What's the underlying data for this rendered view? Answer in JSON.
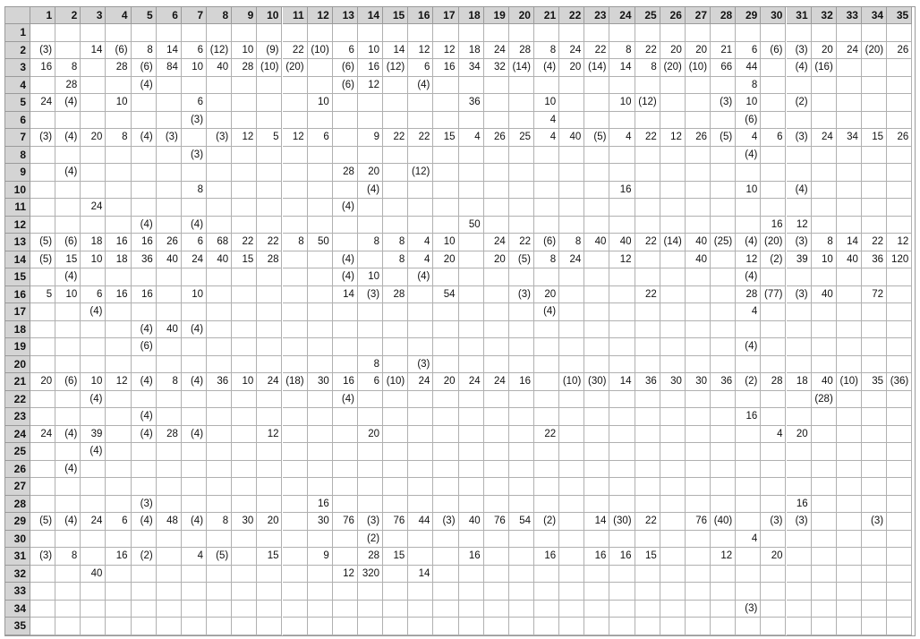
{
  "columns": [
    "1",
    "2",
    "3",
    "4",
    "5",
    "6",
    "7",
    "8",
    "9",
    "10",
    "11",
    "12",
    "13",
    "14",
    "15",
    "16",
    "17",
    "18",
    "19",
    "20",
    "21",
    "22",
    "23",
    "24",
    "25",
    "26",
    "27",
    "28",
    "29",
    "30",
    "31",
    "32",
    "33",
    "34",
    "35"
  ],
  "rows": [
    {
      "label": "1",
      "cells": [
        "",
        "",
        "",
        "",
        "",
        "",
        "",
        "",
        "",
        "",
        "",
        "",
        "",
        "",
        "",
        "",
        "",
        "",
        "",
        "",
        "",
        "",
        "",
        "",
        "",
        "",
        "",
        "",
        "",
        "",
        "",
        "",
        "",
        "",
        ""
      ]
    },
    {
      "label": "2",
      "cells": [
        "(3)",
        "",
        "14",
        "(6)",
        "8",
        "14",
        "6",
        "(12)",
        "10",
        "(9)",
        "22",
        "(10)",
        "6",
        "10",
        "14",
        "12",
        "12",
        "18",
        "24",
        "28",
        "8",
        "24",
        "22",
        "8",
        "22",
        "20",
        "20",
        "21",
        "6",
        "(6)",
        "(3)",
        "20",
        "24",
        "(20)",
        "26"
      ]
    },
    {
      "label": "3",
      "cells": [
        "16",
        "8",
        "",
        "28",
        "(6)",
        "84",
        "10",
        "40",
        "28",
        "(10)",
        "(20)",
        "",
        "(6)",
        "16",
        "(12)",
        "6",
        "16",
        "34",
        "32",
        "(14)",
        "(4)",
        "20",
        "(14)",
        "14",
        "8",
        "(20)",
        "(10)",
        "66",
        "44",
        "",
        "(4)",
        "(16)",
        "",
        "",
        ""
      ]
    },
    {
      "label": "4",
      "cells": [
        "",
        "28",
        "",
        "",
        "(4)",
        "",
        "",
        "",
        "",
        "",
        "",
        "",
        "(6)",
        "12",
        "",
        "(4)",
        "",
        "",
        "",
        "",
        "",
        "",
        "",
        "",
        "",
        "",
        "",
        "",
        "8",
        "",
        "",
        "",
        "",
        "",
        ""
      ]
    },
    {
      "label": "5",
      "cells": [
        "24",
        "(4)",
        "",
        "10",
        "",
        "",
        "6",
        "",
        "",
        "",
        "",
        "10",
        "",
        "",
        "",
        "",
        "",
        "36",
        "",
        "",
        "10",
        "",
        "",
        "10",
        "(12)",
        "",
        "",
        "(3)",
        "10",
        "",
        "(2)",
        "",
        "",
        "",
        ""
      ]
    },
    {
      "label": "6",
      "cells": [
        "",
        "",
        "",
        "",
        "",
        "",
        "(3)",
        "",
        "",
        "",
        "",
        "",
        "",
        "",
        "",
        "",
        "",
        "",
        "",
        "",
        "4",
        "",
        "",
        "",
        "",
        "",
        "",
        "",
        "(6)",
        "",
        "",
        "",
        "",
        "",
        ""
      ]
    },
    {
      "label": "7",
      "cells": [
        "(3)",
        "(4)",
        "20",
        "8",
        "(4)",
        "(3)",
        "",
        "(3)",
        "12",
        "5",
        "12",
        "6",
        "",
        "9",
        "22",
        "22",
        "15",
        "4",
        "26",
        "25",
        "4",
        "40",
        "(5)",
        "4",
        "22",
        "12",
        "26",
        "(5)",
        "4",
        "6",
        "(3)",
        "24",
        "34",
        "15",
        "26"
      ]
    },
    {
      "label": "8",
      "cells": [
        "",
        "",
        "",
        "",
        "",
        "",
        "(3)",
        "",
        "",
        "",
        "",
        "",
        "",
        "",
        "",
        "",
        "",
        "",
        "",
        "",
        "",
        "",
        "",
        "",
        "",
        "",
        "",
        "",
        "(4)",
        "",
        "",
        "",
        "",
        "",
        ""
      ]
    },
    {
      "label": "9",
      "cells": [
        "",
        "(4)",
        "",
        "",
        "",
        "",
        "",
        "",
        "",
        "",
        "",
        "",
        "28",
        "20",
        "",
        "(12)",
        "",
        "",
        "",
        "",
        "",
        "",
        "",
        "",
        "",
        "",
        "",
        "",
        "",
        "",
        "",
        "",
        "",
        "",
        ""
      ]
    },
    {
      "label": "10",
      "cells": [
        "",
        "",
        "",
        "",
        "",
        "",
        "8",
        "",
        "",
        "",
        "",
        "",
        "",
        "(4)",
        "",
        "",
        "",
        "",
        "",
        "",
        "",
        "",
        "",
        "16",
        "",
        "",
        "",
        "",
        "10",
        "",
        "(4)",
        "",
        "",
        "",
        ""
      ]
    },
    {
      "label": "11",
      "cells": [
        "",
        "",
        "24",
        "",
        "",
        "",
        "",
        "",
        "",
        "",
        "",
        "",
        "(4)",
        "",
        "",
        "",
        "",
        "",
        "",
        "",
        "",
        "",
        "",
        "",
        "",
        "",
        "",
        "",
        "",
        "",
        "",
        "",
        "",
        "",
        ""
      ]
    },
    {
      "label": "12",
      "cells": [
        "",
        "",
        "",
        "",
        "(4)",
        "",
        "(4)",
        "",
        "",
        "",
        "",
        "",
        "",
        "",
        "",
        "",
        "",
        "50",
        "",
        "",
        "",
        "",
        "",
        "",
        "",
        "",
        "",
        "",
        "",
        "16",
        "12",
        "",
        "",
        "",
        ""
      ]
    },
    {
      "label": "13",
      "cells": [
        "(5)",
        "(6)",
        "18",
        "16",
        "16",
        "26",
        "6",
        "68",
        "22",
        "22",
        "8",
        "50",
        "",
        "8",
        "8",
        "4",
        "10",
        "",
        "24",
        "22",
        "(6)",
        "8",
        "40",
        "40",
        "22",
        "(14)",
        "40",
        "(25)",
        "(4)",
        "(20)",
        "(3)",
        "8",
        "14",
        "22",
        "12"
      ]
    },
    {
      "label": "14",
      "cells": [
        "(5)",
        "15",
        "10",
        "18",
        "36",
        "40",
        "24",
        "40",
        "15",
        "28",
        "",
        "",
        "(4)",
        "",
        "8",
        "4",
        "20",
        "",
        "20",
        "(5)",
        "8",
        "24",
        "",
        "12",
        "",
        "",
        "40",
        "",
        "12",
        "(2)",
        "39",
        "10",
        "40",
        "36",
        "120"
      ]
    },
    {
      "label": "15",
      "cells": [
        "",
        "(4)",
        "",
        "",
        "",
        "",
        "",
        "",
        "",
        "",
        "",
        "",
        "(4)",
        "10",
        "",
        "(4)",
        "",
        "",
        "",
        "",
        "",
        "",
        "",
        "",
        "",
        "",
        "",
        "",
        "(4)",
        "",
        "",
        "",
        "",
        "",
        ""
      ]
    },
    {
      "label": "16",
      "cells": [
        "5",
        "10",
        "6",
        "16",
        "16",
        "",
        "10",
        "",
        "",
        "",
        "",
        "",
        "14",
        "(3)",
        "28",
        "",
        "54",
        "",
        "",
        "(3)",
        "20",
        "",
        "",
        "",
        "22",
        "",
        "",
        "",
        "28",
        "(77)",
        "(3)",
        "40",
        "",
        "72",
        ""
      ]
    },
    {
      "label": "17",
      "cells": [
        "",
        "",
        "(4)",
        "",
        "",
        "",
        "",
        "",
        "",
        "",
        "",
        "",
        "",
        "",
        "",
        "",
        "",
        "",
        "",
        "",
        "(4)",
        "",
        "",
        "",
        "",
        "",
        "",
        "",
        "4",
        "",
        "",
        "",
        "",
        "",
        ""
      ]
    },
    {
      "label": "18",
      "cells": [
        "",
        "",
        "",
        "",
        "(4)",
        "40",
        "(4)",
        "",
        "",
        "",
        "",
        "",
        "",
        "",
        "",
        "",
        "",
        "",
        "",
        "",
        "",
        "",
        "",
        "",
        "",
        "",
        "",
        "",
        "",
        "",
        "",
        "",
        "",
        "",
        ""
      ]
    },
    {
      "label": "19",
      "cells": [
        "",
        "",
        "",
        "",
        "(6)",
        "",
        "",
        "",
        "",
        "",
        "",
        "",
        "",
        "",
        "",
        "",
        "",
        "",
        "",
        "",
        "",
        "",
        "",
        "",
        "",
        "",
        "",
        "",
        "(4)",
        "",
        "",
        "",
        "",
        "",
        ""
      ]
    },
    {
      "label": "20",
      "cells": [
        "",
        "",
        "",
        "",
        "",
        "",
        "",
        "",
        "",
        "",
        "",
        "",
        "",
        "8",
        "",
        "(3)",
        "",
        "",
        "",
        "",
        "",
        "",
        "",
        "",
        "",
        "",
        "",
        "",
        "",
        "",
        "",
        "",
        "",
        "",
        ""
      ]
    },
    {
      "label": "21",
      "cells": [
        "20",
        "(6)",
        "10",
        "12",
        "(4)",
        "8",
        "(4)",
        "36",
        "10",
        "24",
        "(18)",
        "30",
        "16",
        "6",
        "(10)",
        "24",
        "20",
        "24",
        "24",
        "16",
        "",
        "(10)",
        "(30)",
        "14",
        "36",
        "30",
        "30",
        "36",
        "(2)",
        "28",
        "18",
        "40",
        "(10)",
        "35",
        "(36)"
      ]
    },
    {
      "label": "22",
      "cells": [
        "",
        "",
        "(4)",
        "",
        "",
        "",
        "",
        "",
        "",
        "",
        "",
        "",
        "(4)",
        "",
        "",
        "",
        "",
        "",
        "",
        "",
        "",
        "",
        "",
        "",
        "",
        "",
        "",
        "",
        "",
        "",
        "",
        "(28)",
        "",
        "",
        ""
      ]
    },
    {
      "label": "23",
      "cells": [
        "",
        "",
        "",
        "",
        "(4)",
        "",
        "",
        "",
        "",
        "",
        "",
        "",
        "",
        "",
        "",
        "",
        "",
        "",
        "",
        "",
        "",
        "",
        "",
        "",
        "",
        "",
        "",
        "",
        "16",
        "",
        "",
        "",
        "",
        "",
        ""
      ]
    },
    {
      "label": "24",
      "cells": [
        "24",
        "(4)",
        "39",
        "",
        "(4)",
        "28",
        "(4)",
        "",
        "",
        "12",
        "",
        "",
        "",
        "20",
        "",
        "",
        "",
        "",
        "",
        "",
        "22",
        "",
        "",
        "",
        "",
        "",
        "",
        "",
        "",
        "4",
        "20",
        "",
        "",
        "",
        ""
      ]
    },
    {
      "label": "25",
      "cells": [
        "",
        "",
        "(4)",
        "",
        "",
        "",
        "",
        "",
        "",
        "",
        "",
        "",
        "",
        "",
        "",
        "",
        "",
        "",
        "",
        "",
        "",
        "",
        "",
        "",
        "",
        "",
        "",
        "",
        "",
        "",
        "",
        "",
        "",
        "",
        ""
      ]
    },
    {
      "label": "26",
      "cells": [
        "",
        "(4)",
        "",
        "",
        "",
        "",
        "",
        "",
        "",
        "",
        "",
        "",
        "",
        "",
        "",
        "",
        "",
        "",
        "",
        "",
        "",
        "",
        "",
        "",
        "",
        "",
        "",
        "",
        "",
        "",
        "",
        "",
        "",
        "",
        ""
      ]
    },
    {
      "label": "27",
      "cells": [
        "",
        "",
        "",
        "",
        "",
        "",
        "",
        "",
        "",
        "",
        "",
        "",
        "",
        "",
        "",
        "",
        "",
        "",
        "",
        "",
        "",
        "",
        "",
        "",
        "",
        "",
        "",
        "",
        "",
        "",
        "",
        "",
        "",
        "",
        ""
      ]
    },
    {
      "label": "28",
      "cells": [
        "",
        "",
        "",
        "",
        "(3)",
        "",
        "",
        "",
        "",
        "",
        "",
        "16",
        "",
        "",
        "",
        "",
        "",
        "",
        "",
        "",
        "",
        "",
        "",
        "",
        "",
        "",
        "",
        "",
        "",
        "",
        "16",
        "",
        "",
        "",
        ""
      ]
    },
    {
      "label": "29",
      "cells": [
        "(5)",
        "(4)",
        "24",
        "6",
        "(4)",
        "48",
        "(4)",
        "8",
        "30",
        "20",
        "",
        "30",
        "76",
        "(3)",
        "76",
        "44",
        "(3)",
        "40",
        "76",
        "54",
        "(2)",
        "",
        "14",
        "(30)",
        "22",
        "",
        "76",
        "(40)",
        "",
        "(3)",
        "(3)",
        "",
        "",
        "(3)",
        ""
      ]
    },
    {
      "label": "30",
      "cells": [
        "",
        "",
        "",
        "",
        "",
        "",
        "",
        "",
        "",
        "",
        "",
        "",
        "",
        "(2)",
        "",
        "",
        "",
        "",
        "",
        "",
        "",
        "",
        "",
        "",
        "",
        "",
        "",
        "",
        "4",
        "",
        "",
        "",
        "",
        "",
        ""
      ]
    },
    {
      "label": "31",
      "cells": [
        "(3)",
        "8",
        "",
        "16",
        "(2)",
        "",
        "4",
        "(5)",
        "",
        "15",
        "",
        "9",
        "",
        "28",
        "15",
        "",
        "",
        "16",
        "",
        "",
        "16",
        "",
        "16",
        "16",
        "15",
        "",
        "",
        "12",
        "",
        "20",
        "",
        "",
        "",
        "",
        ""
      ]
    },
    {
      "label": "32",
      "cells": [
        "",
        "",
        "40",
        "",
        "",
        "",
        "",
        "",
        "",
        "",
        "",
        "",
        "12",
        "320",
        "",
        "14",
        "",
        "",
        "",
        "",
        "",
        "",
        "",
        "",
        "",
        "",
        "",
        "",
        "",
        "",
        "",
        "",
        "",
        "",
        ""
      ]
    },
    {
      "label": "33",
      "cells": [
        "",
        "",
        "",
        "",
        "",
        "",
        "",
        "",
        "",
        "",
        "",
        "",
        "",
        "",
        "",
        "",
        "",
        "",
        "",
        "",
        "",
        "",
        "",
        "",
        "",
        "",
        "",
        "",
        "",
        "",
        "",
        "",
        "",
        "",
        ""
      ]
    },
    {
      "label": "34",
      "cells": [
        "",
        "",
        "",
        "",
        "",
        "",
        "",
        "",
        "",
        "",
        "",
        "",
        "",
        "",
        "",
        "",
        "",
        "",
        "",
        "",
        "",
        "",
        "",
        "",
        "",
        "",
        "",
        "",
        "(3)",
        "",
        "",
        "",
        "",
        "",
        ""
      ]
    },
    {
      "label": "35",
      "cells": [
        "",
        "",
        "",
        "",
        "",
        "",
        "",
        "",
        "",
        "",
        "",
        "",
        "",
        "",
        "",
        "",
        "",
        "",
        "",
        "",
        "",
        "",
        "",
        "",
        "",
        "",
        "",
        "",
        "",
        "",
        "",
        "",
        "",
        "",
        ""
      ]
    }
  ]
}
